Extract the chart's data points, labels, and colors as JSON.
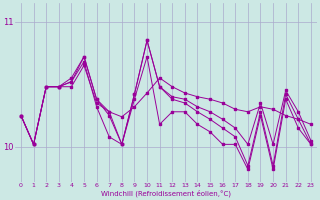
{
  "xlabel": "Windchill (Refroidissement éolien,°C)",
  "bg_color": "#cce8e4",
  "line_color": "#990099",
  "grid_color": "#aaaacc",
  "xlim_min": -0.5,
  "xlim_max": 23.5,
  "ylim_min": 9.72,
  "ylim_max": 11.15,
  "yticks": [
    10,
    11
  ],
  "xticks": [
    0,
    1,
    2,
    3,
    4,
    5,
    6,
    7,
    8,
    9,
    10,
    11,
    12,
    13,
    14,
    15,
    16,
    17,
    18,
    19,
    20,
    21,
    22,
    23
  ],
  "series": [
    [
      10.25,
      10.02,
      10.48,
      10.48,
      10.48,
      10.65,
      10.35,
      10.28,
      10.24,
      10.32,
      10.43,
      10.55,
      10.48,
      10.43,
      10.4,
      10.38,
      10.35,
      10.3,
      10.28,
      10.32,
      10.3,
      10.25,
      10.22,
      10.18
    ],
    [
      10.25,
      10.02,
      10.48,
      10.48,
      10.52,
      10.72,
      10.38,
      10.28,
      10.02,
      10.42,
      10.85,
      10.48,
      10.4,
      10.38,
      10.32,
      10.28,
      10.22,
      10.15,
      10.02,
      10.35,
      10.02,
      10.45,
      10.28,
      10.05
    ],
    [
      10.25,
      10.02,
      10.48,
      10.48,
      10.55,
      10.72,
      10.38,
      10.25,
      10.02,
      10.42,
      10.85,
      10.48,
      10.38,
      10.35,
      10.28,
      10.22,
      10.15,
      10.08,
      9.85,
      10.28,
      9.85,
      10.42,
      10.22,
      10.02
    ],
    [
      10.25,
      10.02,
      10.48,
      10.48,
      10.52,
      10.68,
      10.32,
      10.08,
      10.02,
      10.38,
      10.72,
      10.18,
      10.28,
      10.28,
      10.18,
      10.12,
      10.02,
      10.02,
      9.82,
      10.25,
      9.82,
      10.38,
      10.15,
      10.02
    ]
  ]
}
